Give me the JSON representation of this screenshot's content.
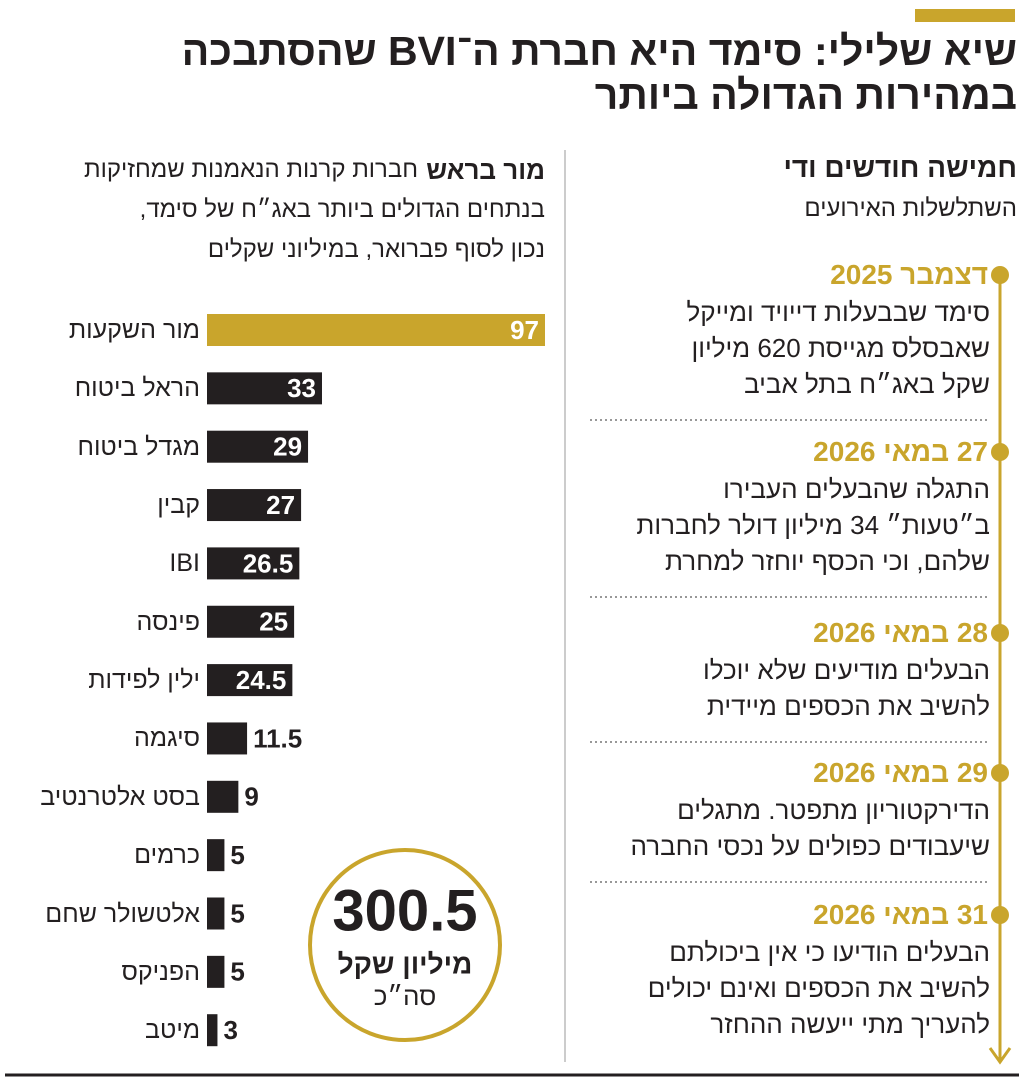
{
  "title_lines": [
    "שיא שלילי: סימד היא חברת ה־BVI שהסתבכה",
    "במהירות הגדולה ביותר"
  ],
  "chart_data": {
    "type": "bar",
    "orientation": "horizontal",
    "subtitle_lead": "מור בראש",
    "subtitle_lines": [
      "חברות קרנות הנאמנות שמחזיקות",
      "בנתחים הגדולים ביותר באג״ח של סימד,",
      "נכון לסוף פברואר, במיליוני שקלים"
    ],
    "categories": [
      "מור השקעות",
      "הראל ביטוח",
      "מגדל ביטוח",
      "קבין",
      "IBI",
      "פינסה",
      "ילין לפידות",
      "סיגמה",
      "בסט אלטרנטיב",
      "כרמים",
      "אלטשולר שחם",
      "הפניקס",
      "מיטב"
    ],
    "values": [
      97,
      33,
      29,
      27,
      26.5,
      25,
      24.5,
      11.5,
      9,
      5,
      5,
      5,
      3
    ],
    "colors": [
      "#c9a52c",
      "#231f20",
      "#231f20",
      "#231f20",
      "#231f20",
      "#231f20",
      "#231f20",
      "#231f20",
      "#231f20",
      "#231f20",
      "#231f20",
      "#231f20",
      "#231f20"
    ]
  },
  "total": {
    "value": 300.5,
    "unit": "מיליון שקל",
    "label": "סה״כ"
  },
  "timeline": {
    "heading": "חמישה חודשים ודי",
    "subheading": "השתלשלות האירועים",
    "events": [
      {
        "date": "דצמבר 2025",
        "lines": [
          "סימד שבבעלות דייויד ומייקל",
          "שאבסלס מגייסת 620 מיליון",
          "שקל באג״ח בתל אביב"
        ]
      },
      {
        "date": "27 במאי 2026",
        "lines": [
          "התגלה שהבעלים העבירו",
          "ב״טעות״ 34 מיליון דולר לחברות",
          "שלהם, וכי הכסף יוחזר למחרת"
        ]
      },
      {
        "date": "28 במאי 2026",
        "lines": [
          "הבעלים מודיעים שלא יוכלו",
          "להשיב את הכספים מיידית"
        ]
      },
      {
        "date": "29 במאי 2026",
        "lines": [
          "הדירקטוריון מתפטר. מתגלים",
          "שיעבודים כפולים על נכסי החברה"
        ]
      },
      {
        "date": "31 במאי 2026",
        "lines": [
          "הבעלים הודיעו כי אין ביכולתם",
          "להשיב את הכספים ואינם יכולים",
          "להעריך מתי ייעשה ההחזר"
        ]
      }
    ]
  }
}
